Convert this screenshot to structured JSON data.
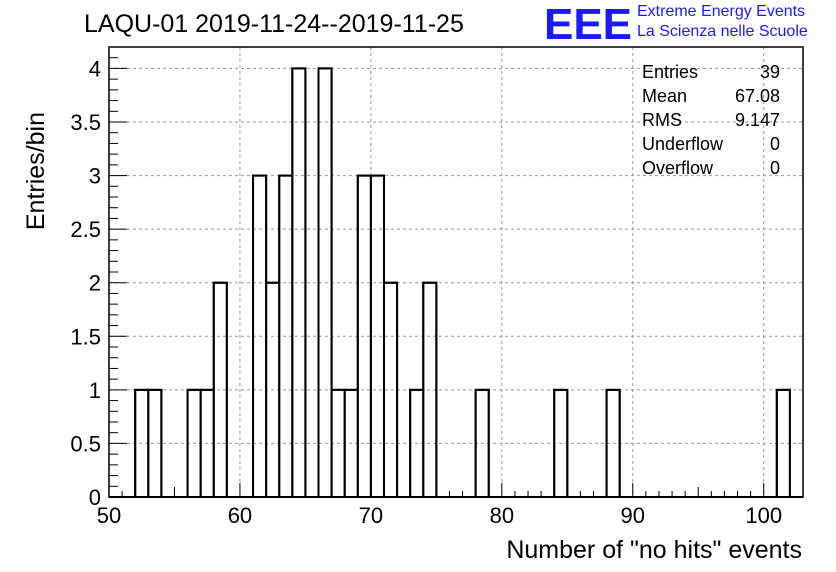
{
  "chart_data": {
    "type": "bar",
    "title": "LAQU-01 2019-11-24--2019-11-25",
    "xlabel": "Number of \"no hits\" events",
    "ylabel": "Entries/bin",
    "xlim": [
      50,
      103
    ],
    "ylim": [
      0,
      4.2
    ],
    "bin_width": 1,
    "x_ticks": [
      50,
      60,
      70,
      80,
      90,
      100
    ],
    "y_ticks": [
      0,
      0.5,
      1,
      1.5,
      2,
      2.5,
      3,
      3.5,
      4
    ],
    "x_tick_labels": [
      "50",
      "60",
      "70",
      "80",
      "90",
      "100"
    ],
    "y_tick_labels": [
      "0",
      "0.5",
      "1",
      "1.5",
      "2",
      "2.5",
      "3",
      "3.5",
      "4"
    ],
    "grid": true,
    "bins": [
      {
        "x": 52,
        "count": 1
      },
      {
        "x": 53,
        "count": 1
      },
      {
        "x": 56,
        "count": 1
      },
      {
        "x": 57,
        "count": 1
      },
      {
        "x": 58,
        "count": 2
      },
      {
        "x": 61,
        "count": 3
      },
      {
        "x": 62,
        "count": 2
      },
      {
        "x": 63,
        "count": 3
      },
      {
        "x": 64,
        "count": 4
      },
      {
        "x": 66,
        "count": 4
      },
      {
        "x": 67,
        "count": 1
      },
      {
        "x": 68,
        "count": 1
      },
      {
        "x": 69,
        "count": 3
      },
      {
        "x": 70,
        "count": 3
      },
      {
        "x": 71,
        "count": 2
      },
      {
        "x": 73,
        "count": 1
      },
      {
        "x": 74,
        "count": 2
      },
      {
        "x": 78,
        "count": 1
      },
      {
        "x": 84,
        "count": 1
      },
      {
        "x": 88,
        "count": 1
      },
      {
        "x": 101,
        "count": 1
      }
    ],
    "stats": [
      {
        "label": "Entries",
        "value": "39"
      },
      {
        "label": "Mean",
        "value": "67.08"
      },
      {
        "label": "RMS",
        "value": "9.147"
      },
      {
        "label": "Underflow",
        "value": "0"
      },
      {
        "label": "Overflow",
        "value": "0"
      }
    ]
  },
  "logo": {
    "letters": "EEE",
    "line1": "Extreme Energy Events",
    "line2": "La Scienza nelle Scuole",
    "color": "#1a1aff"
  }
}
